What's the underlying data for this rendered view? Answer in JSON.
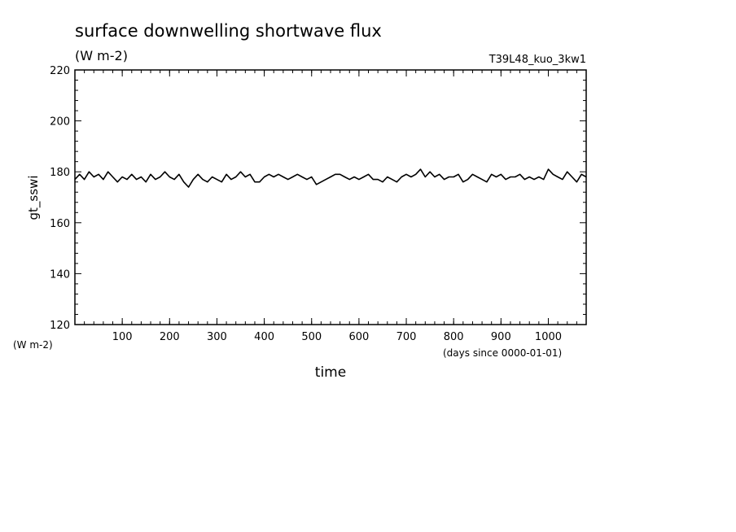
{
  "chart_data": {
    "type": "line",
    "title": "surface downwelling shortwave flux",
    "subtitle": "(W m-2)",
    "run_label": "T39L48_kuo_3kw1",
    "ylabel": "gt_sswi",
    "ylabel_unit": "(W m-2)",
    "xlabel": "time",
    "xlabel_unit": "(days since 0000-01-01)",
    "xlim": [
      0,
      1080
    ],
    "ylim": [
      120,
      220
    ],
    "x_ticks": [
      100,
      200,
      300,
      400,
      500,
      600,
      700,
      800,
      900,
      1000
    ],
    "x_tick_labels": [
      "100",
      "200",
      "300",
      "400",
      "500",
      "600",
      "700",
      "800",
      "900",
      "1000"
    ],
    "y_ticks": [
      120,
      140,
      160,
      180,
      200,
      220
    ],
    "y_tick_labels": [
      "120",
      "140",
      "160",
      "180",
      "200",
      "220"
    ],
    "grid": false,
    "series": [
      {
        "x": [
          0,
          10,
          20,
          30,
          40,
          50,
          60,
          70,
          80,
          90,
          100,
          110,
          120,
          130,
          140,
          150,
          160,
          170,
          180,
          190,
          200,
          210,
          220,
          230,
          240,
          250,
          260,
          270,
          280,
          290,
          300,
          310,
          320,
          330,
          340,
          350,
          360,
          370,
          380,
          390,
          400,
          410,
          420,
          430,
          440,
          450,
          460,
          470,
          480,
          490,
          500,
          510,
          520,
          530,
          540,
          550,
          560,
          570,
          580,
          590,
          600,
          610,
          620,
          630,
          640,
          650,
          660,
          670,
          680,
          690,
          700,
          710,
          720,
          730,
          740,
          750,
          760,
          770,
          780,
          790,
          800,
          810,
          820,
          830,
          840,
          850,
          860,
          870,
          880,
          890,
          900,
          910,
          920,
          930,
          940,
          950,
          960,
          970,
          980,
          990,
          1000,
          1010,
          1020,
          1030,
          1040,
          1050,
          1060,
          1070,
          1080
        ],
        "y": [
          177,
          179,
          177,
          180,
          178,
          179,
          177,
          180,
          178,
          176,
          178,
          177,
          179,
          177,
          178,
          176,
          179,
          177,
          178,
          180,
          178,
          177,
          179,
          176,
          174,
          177,
          179,
          177,
          176,
          178,
          177,
          176,
          179,
          177,
          178,
          180,
          178,
          179,
          176,
          176,
          178,
          179,
          178,
          179,
          178,
          177,
          178,
          179,
          178,
          177,
          178,
          175,
          176,
          177,
          178,
          179,
          179,
          178,
          177,
          178,
          177,
          178,
          179,
          177,
          177,
          176,
          178,
          177,
          176,
          178,
          179,
          178,
          179,
          181,
          178,
          180,
          178,
          179,
          177,
          178,
          178,
          179,
          176,
          177,
          179,
          178,
          177,
          176,
          179,
          178,
          179,
          177,
          178,
          178,
          179,
          177,
          178,
          177,
          178,
          177,
          181,
          179,
          178,
          177,
          180,
          178,
          176,
          179,
          178
        ]
      }
    ]
  }
}
